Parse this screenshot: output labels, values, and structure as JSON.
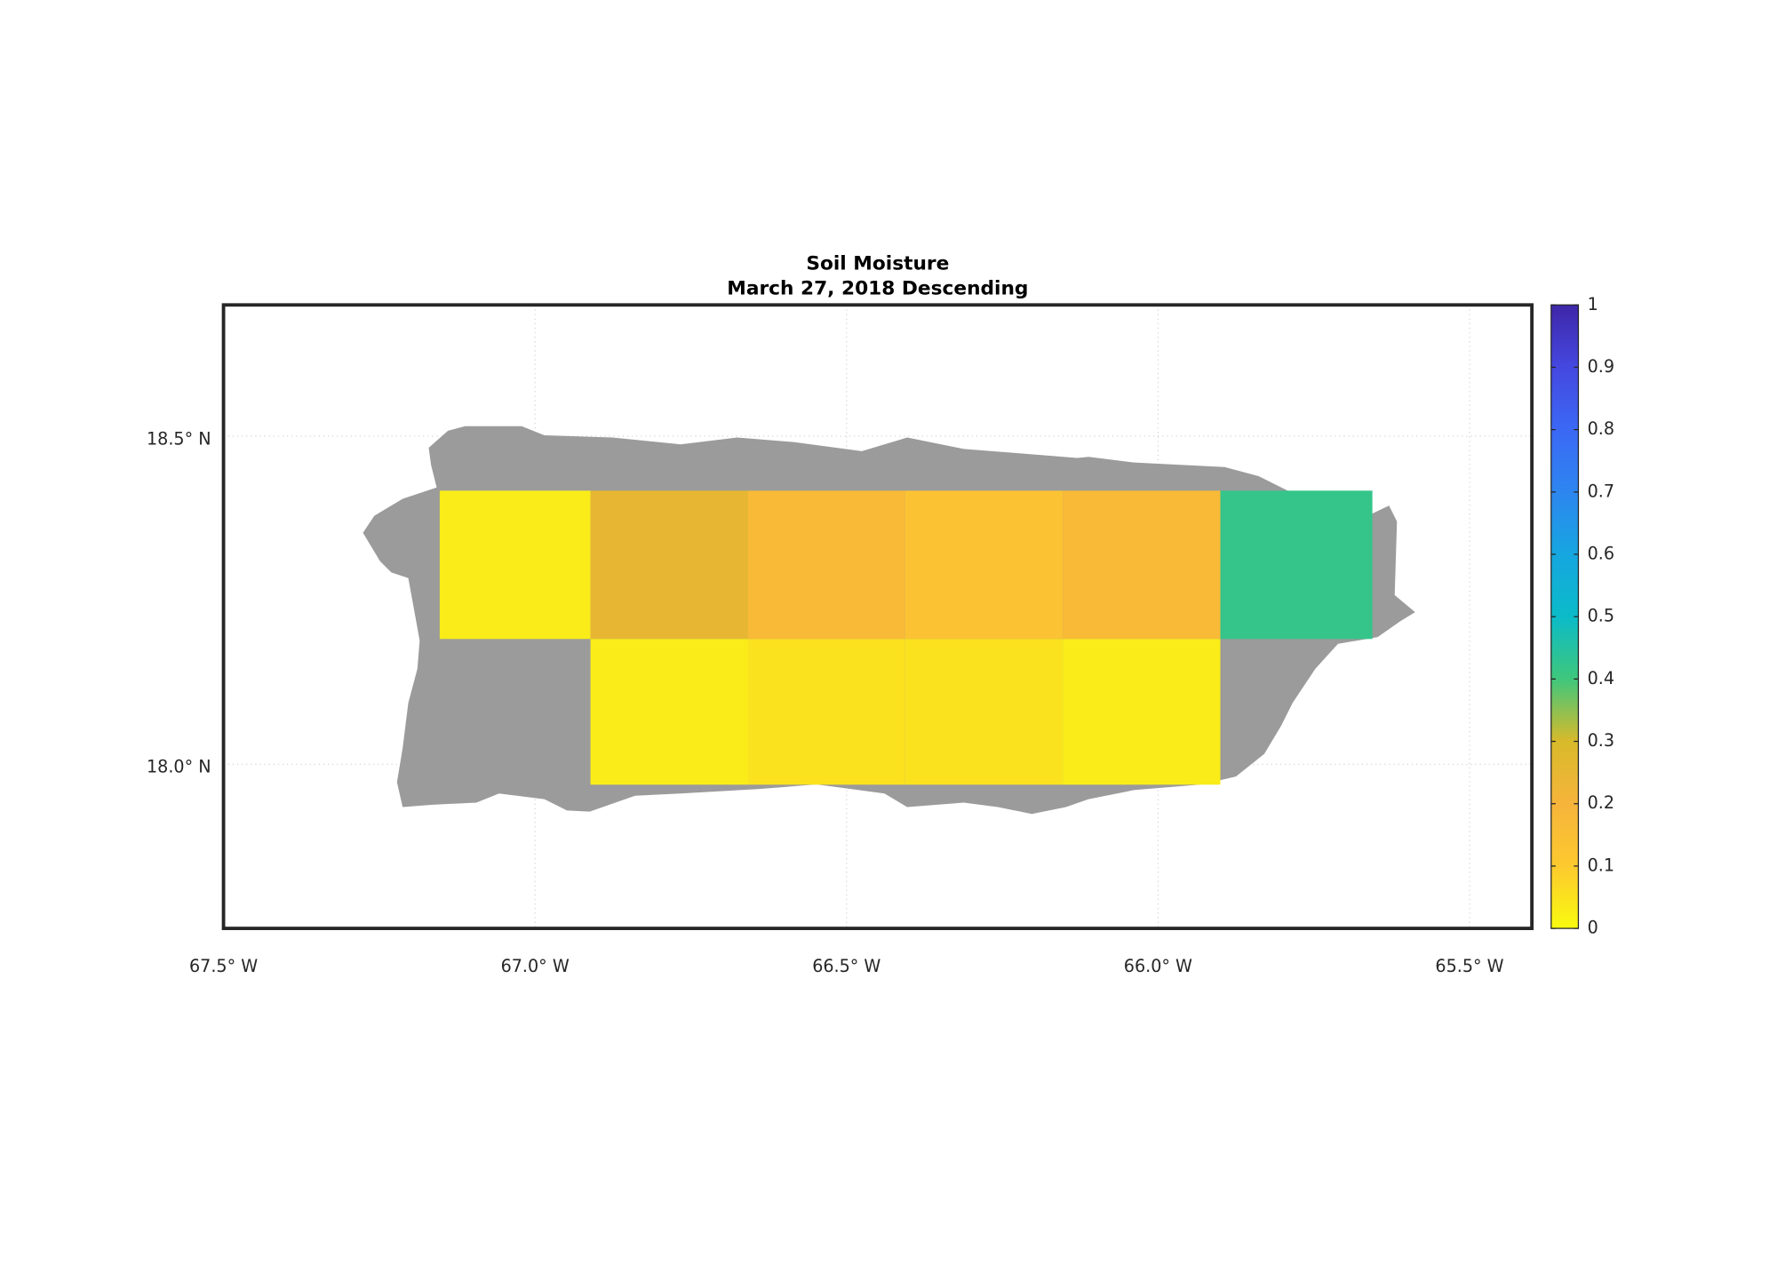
{
  "chart_data": {
    "type": "gridmap",
    "title": "Soil Moisture",
    "subtitle": "March 27, 2018 Descending",
    "xlim": [
      -67.5,
      -65.4
    ],
    "ylim": [
      17.75,
      18.7
    ],
    "xticks": [
      {
        "value": -67.5,
        "label": "67.5° W"
      },
      {
        "value": -67.0,
        "label": "67.0° W"
      },
      {
        "value": -66.5,
        "label": "66.5° W"
      },
      {
        "value": -66.0,
        "label": "66.0° W"
      },
      {
        "value": -65.5,
        "label": "65.5° W"
      }
    ],
    "yticks": [
      {
        "value": 18.0,
        "label": "18.0° N"
      },
      {
        "value": 18.5,
        "label": "18.5° N"
      }
    ],
    "grid": true,
    "clim": [
      0,
      1
    ],
    "cticks": [
      0,
      0.1,
      0.2,
      0.3,
      0.4,
      0.5,
      0.6,
      0.7,
      0.8,
      0.9,
      1
    ],
    "colormap": [
      "#f9fb0e",
      "#fdc92f",
      "#f6b43b",
      "#d8ba2a",
      "#3fc77c",
      "#0bbbc8",
      "#16a6e0",
      "#2d86f0",
      "#3b68f5",
      "#4548e0",
      "#3e26a8"
    ],
    "land_color": "#9b9b9b",
    "cells": [
      {
        "lon": [
          -67.153,
          -66.911
        ],
        "lat": [
          18.191,
          18.417
        ],
        "value": 0.03
      },
      {
        "lon": [
          -66.911,
          -66.658
        ],
        "lat": [
          18.191,
          18.417
        ],
        "value": 0.25
      },
      {
        "lon": [
          -66.658,
          -66.406
        ],
        "lat": [
          18.191,
          18.417
        ],
        "value": 0.17
      },
      {
        "lon": [
          -66.406,
          -66.153
        ],
        "lat": [
          18.191,
          18.417
        ],
        "value": 0.13
      },
      {
        "lon": [
          -66.153,
          -65.9
        ],
        "lat": [
          18.191,
          18.417
        ],
        "value": 0.17
      },
      {
        "lon": [
          -65.9,
          -65.656
        ],
        "lat": [
          18.191,
          18.417
        ],
        "value": 0.42
      },
      {
        "lon": [
          -66.911,
          -66.658
        ],
        "lat": [
          17.969,
          18.191
        ],
        "value": 0.03
      },
      {
        "lon": [
          -66.658,
          -66.406
        ],
        "lat": [
          17.969,
          18.191
        ],
        "value": 0.05
      },
      {
        "lon": [
          -66.406,
          -66.153
        ],
        "lat": [
          17.969,
          18.191
        ],
        "value": 0.05
      },
      {
        "lon": [
          -66.153,
          -65.9
        ],
        "lat": [
          17.969,
          18.191
        ],
        "value": 0.03
      }
    ]
  }
}
